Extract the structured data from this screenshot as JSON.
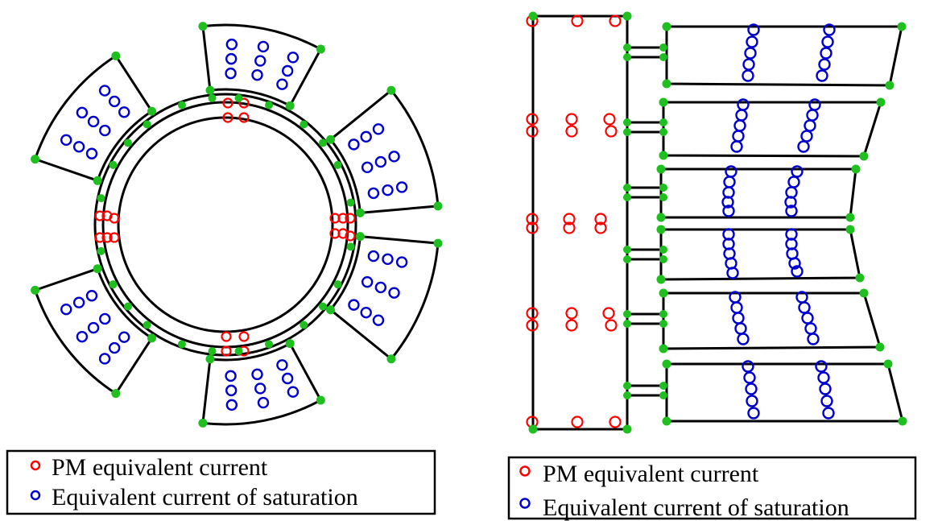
{
  "legend_left": {
    "items": [
      {
        "label": "PM equivalent current",
        "color": "#ff0000"
      },
      {
        "label": "Equivalent current of saturation",
        "color": "#0000cc"
      }
    ]
  },
  "legend_right": {
    "items": [
      {
        "label": "PM equivalent current",
        "color": "#ff0000"
      },
      {
        "label": "Equivalent current of saturation",
        "color": "#0000cc"
      }
    ]
  },
  "colors": {
    "outline": "#000000",
    "node": "#1fbf1f",
    "pm_current": "#ff0000",
    "saturation_current": "#0000cc",
    "boundary_dotted": "#cc44cc"
  }
}
